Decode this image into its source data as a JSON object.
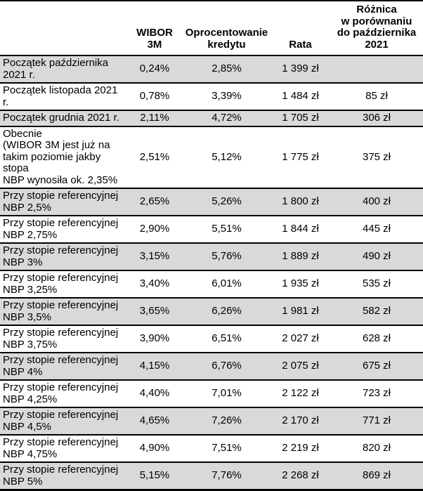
{
  "styles": {
    "shaded_row_bg": "#d9d9d9",
    "border_color": "#000000",
    "text_color": "#000000"
  },
  "chart_data": {
    "type": "table",
    "title": "",
    "columns": [
      "",
      "WIBOR 3M",
      "Oprocentowanie kredytu",
      "Rata",
      "Różnica w porównaniu do października 2021"
    ],
    "header_display": {
      "col1": "",
      "col2": "WIBOR 3M",
      "col3": "Oprocentowanie\nkredytu",
      "col4": "Rata",
      "col5": "Różnica\nw porównaniu\ndo października\n2021"
    },
    "rows": [
      {
        "label": "Początek października\n2021 r.",
        "wibor": "0,24%",
        "oprocentowanie": "2,85%",
        "rata": "1 399 zł",
        "roznica": "",
        "shaded": true
      },
      {
        "label": "Początek listopada 2021 r.",
        "wibor": "0,78%",
        "oprocentowanie": "3,39%",
        "rata": "1 484 zł",
        "roznica": "85 zł",
        "shaded": false
      },
      {
        "label": "Początek grudnia 2021 r.",
        "wibor": "2,11%",
        "oprocentowanie": "4,72%",
        "rata": "1 705 zł",
        "roznica": "306 zł",
        "shaded": true
      },
      {
        "label": "Obecnie\n(WIBOR 3M jest już na\ntakim poziomie jakby stopa\nNBP wynosiła ok. 2,35%",
        "wibor": "2,51%",
        "oprocentowanie": "5,12%",
        "rata": "1 775 zł",
        "roznica": "375 zł",
        "shaded": false
      },
      {
        "label": "Przy stopie referencyjnej\nNBP 2,5%",
        "wibor": "2,65%",
        "oprocentowanie": "5,26%",
        "rata": "1 800 zł",
        "roznica": "400 zł",
        "shaded": true
      },
      {
        "label": "Przy stopie referencyjnej\nNBP 2,75%",
        "wibor": "2,90%",
        "oprocentowanie": "5,51%",
        "rata": "1 844 zł",
        "roznica": "445 zł",
        "shaded": false
      },
      {
        "label": "Przy stopie referencyjnej\nNBP 3%",
        "wibor": "3,15%",
        "oprocentowanie": "5,76%",
        "rata": "1 889 zł",
        "roznica": "490 zł",
        "shaded": true
      },
      {
        "label": "Przy stopie referencyjnej\nNBP 3,25%",
        "wibor": "3,40%",
        "oprocentowanie": "6,01%",
        "rata": "1 935 zł",
        "roznica": "535 zł",
        "shaded": false
      },
      {
        "label": "Przy stopie referencyjnej\nNBP 3,5%",
        "wibor": "3,65%",
        "oprocentowanie": "6,26%",
        "rata": "1 981 zł",
        "roznica": "582 zł",
        "shaded": true
      },
      {
        "label": "Przy stopie referencyjnej\nNBP 3,75%",
        "wibor": "3,90%",
        "oprocentowanie": "6,51%",
        "rata": "2 027 zł",
        "roznica": "628 zł",
        "shaded": false
      },
      {
        "label": "Przy stopie referencyjnej\nNBP 4%",
        "wibor": "4,15%",
        "oprocentowanie": "6,76%",
        "rata": "2 075 zł",
        "roznica": "675 zł",
        "shaded": true
      },
      {
        "label": "Przy stopie referencyjnej\nNBP 4,25%",
        "wibor": "4,40%",
        "oprocentowanie": "7,01%",
        "rata": "2 122 zł",
        "roznica": "723 zł",
        "shaded": false
      },
      {
        "label": "Przy stopie referencyjnej\nNBP 4,5%",
        "wibor": "4,65%",
        "oprocentowanie": "7,26%",
        "rata": "2 170 zł",
        "roznica": "771 zł",
        "shaded": true
      },
      {
        "label": "Przy stopie referencyjnej\nNBP 4,75%",
        "wibor": "4,90%",
        "oprocentowanie": "7,51%",
        "rata": "2 219 zł",
        "roznica": "820 zł",
        "shaded": false
      },
      {
        "label": "Przy stopie referencyjnej\nNBP 5%",
        "wibor": "5,15%",
        "oprocentowanie": "7,76%",
        "rata": "2 268 zł",
        "roznica": "869 zł",
        "shaded": true
      }
    ]
  }
}
